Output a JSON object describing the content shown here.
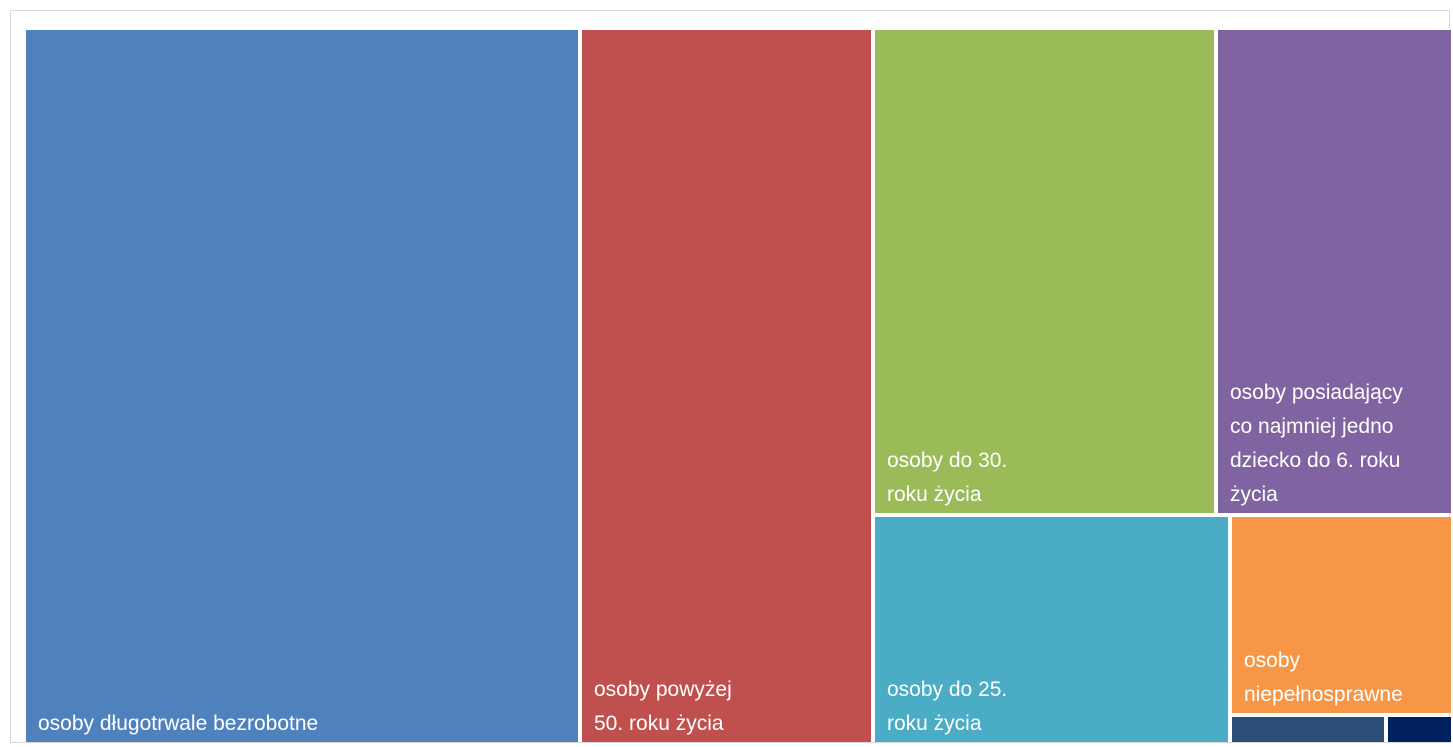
{
  "chart_data": {
    "type": "treemap",
    "title": "",
    "items": [
      {
        "label_lines": [
          "osoby długotrwale bezrobotne"
        ],
        "value": 37.6,
        "color": "#4F81BD"
      },
      {
        "label_lines": [
          "osoby powyżej",
          "50. roku życia"
        ],
        "value": 20.1,
        "color": "#C0504D"
      },
      {
        "label_lines": [
          "osoby do 30.",
          "roku życia"
        ],
        "value": 15.0,
        "color": "#9BBB59"
      },
      {
        "label_lines": [
          "osoby do 25.",
          "roku życia"
        ],
        "value": 9.6,
        "color": "#4BACC6"
      },
      {
        "label_lines": [
          "osoby posiadający",
          "co najmniej jedno",
          "dziecko do 6. roku",
          "życia"
        ],
        "value": 11.0,
        "color": "#8064A2"
      },
      {
        "label_lines": [
          "osoby",
          "niepełnosprawne"
        ],
        "value": 5.1,
        "color": "#F79646"
      },
      {
        "label_lines": [],
        "value": 0.6,
        "color": "#2C4D75"
      },
      {
        "label_lines": [],
        "value": 0.2,
        "color": "#002060"
      }
    ]
  }
}
